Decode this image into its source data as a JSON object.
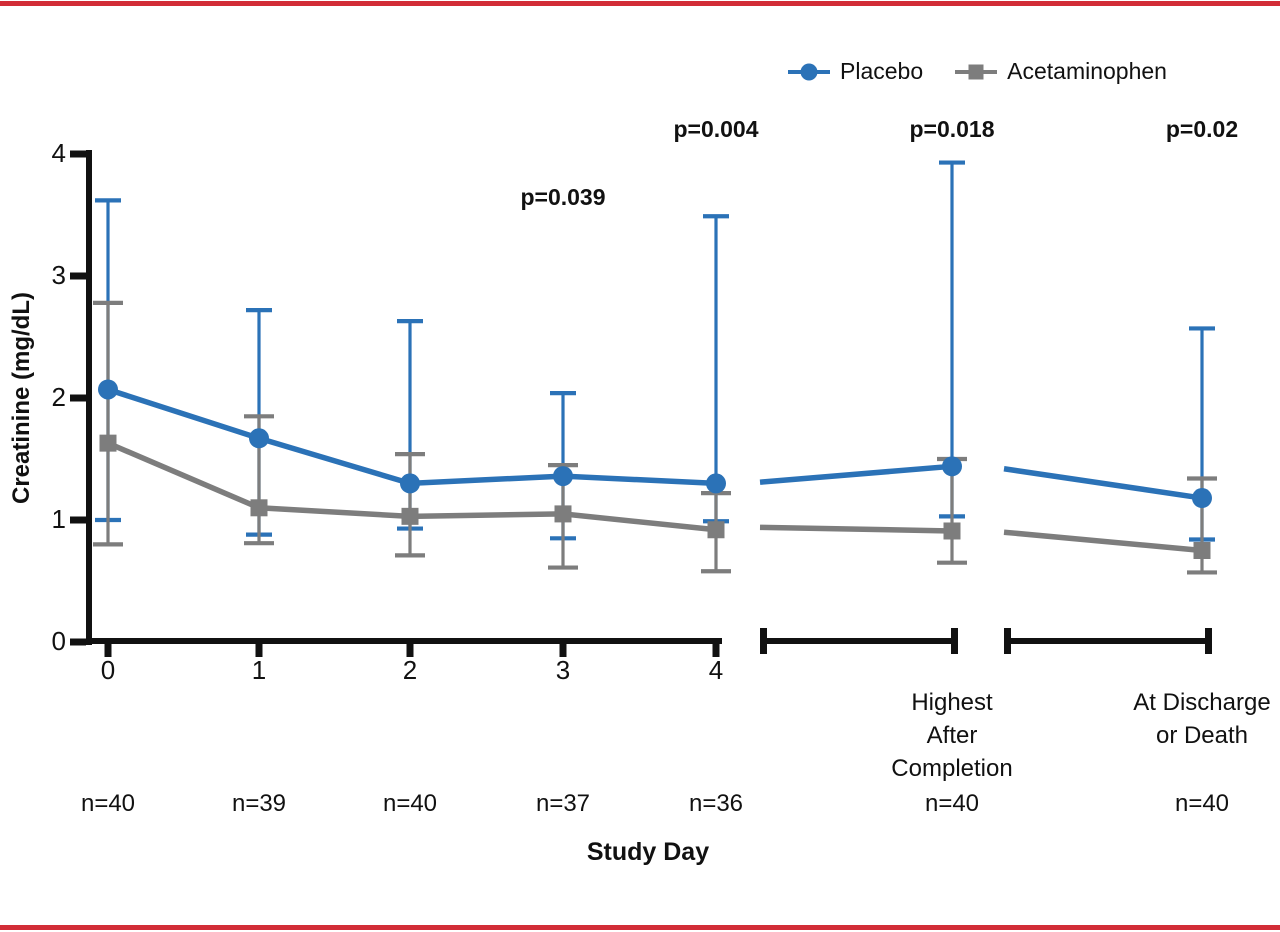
{
  "page": {
    "border_color": "#d22d37",
    "background": "#ffffff"
  },
  "legend": {
    "items": [
      {
        "label": "Placebo",
        "color": "#2b72b7",
        "marker": "circle"
      },
      {
        "label": "Acetaminophen",
        "color": "#7d7d7d",
        "marker": "square"
      }
    ]
  },
  "chart_data": {
    "type": "line",
    "title": "",
    "xlabel": "Study Day",
    "ylabel": "Creatinine (mg/dL)",
    "ylim": [
      0,
      4
    ],
    "y_ticks": [
      0,
      1,
      2,
      3,
      4
    ],
    "grid": false,
    "legend_position": "top-right",
    "axis_break": true,
    "categories": [
      "0",
      "1",
      "2",
      "3",
      "4",
      "Highest After Completion",
      "At Discharge or Death"
    ],
    "category_label_lines": [
      [
        "0"
      ],
      [
        "1"
      ],
      [
        "2"
      ],
      [
        "3"
      ],
      [
        "4"
      ],
      [
        "Highest",
        "After",
        "Completion"
      ],
      [
        "At Discharge",
        "or Death"
      ]
    ],
    "n_labels": [
      "n=40",
      "n=39",
      "n=40",
      "n=37",
      "n=36",
      "n=40",
      "n=40"
    ],
    "series": [
      {
        "name": "Placebo",
        "color": "#2b72b7",
        "marker": "circle",
        "values": [
          2.07,
          1.67,
          1.3,
          1.36,
          1.3,
          1.44,
          1.18
        ],
        "err_low": [
          1.0,
          0.88,
          0.93,
          0.85,
          0.99,
          1.03,
          0.84
        ],
        "err_high": [
          3.62,
          2.72,
          2.63,
          2.04,
          3.49,
          3.93,
          2.57
        ],
        "segment_entry_values": [
          1.31,
          1.42
        ]
      },
      {
        "name": "Acetaminophen",
        "color": "#7d7d7d",
        "marker": "square",
        "values": [
          1.63,
          1.1,
          1.03,
          1.05,
          0.92,
          0.91,
          0.75
        ],
        "err_low": [
          0.8,
          0.81,
          0.71,
          0.61,
          0.58,
          0.65,
          0.57
        ],
        "err_high": [
          2.78,
          1.85,
          1.54,
          1.45,
          1.22,
          1.5,
          1.34
        ],
        "segment_entry_values": [
          0.94,
          0.9
        ]
      }
    ],
    "p_values": [
      {
        "text": "p=0.039",
        "category_index": 3,
        "level": "low"
      },
      {
        "text": "p=0.004",
        "category_index": 4,
        "level": "high"
      },
      {
        "text": "p=0.018",
        "category_index": 5,
        "level": "high"
      },
      {
        "text": "p=0.02",
        "category_index": 6,
        "level": "high"
      }
    ]
  }
}
